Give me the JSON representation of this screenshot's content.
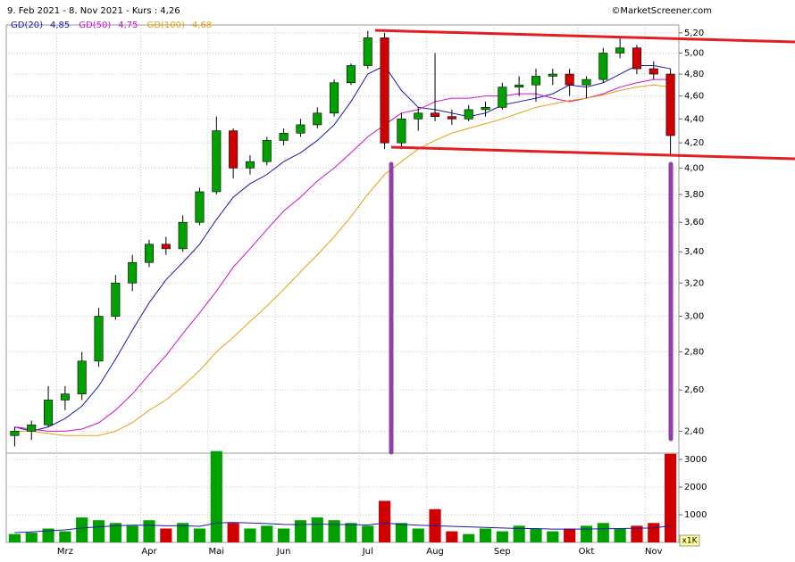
{
  "chart_data": {
    "type": "candlestick",
    "title": "9. Feb 2021 - 8. Nov 2021 - Kurs : 4,26",
    "source": "©MarketScreener.com",
    "categories": [
      null,
      null,
      null,
      "Mrz",
      null,
      null,
      null,
      null,
      "Apr",
      null,
      null,
      null,
      "Mai",
      null,
      null,
      null,
      "Jun",
      null,
      null,
      null,
      null,
      "Jul",
      null,
      null,
      null,
      "Aug",
      null,
      null,
      null,
      "Sep",
      null,
      null,
      null,
      null,
      "Okt",
      null,
      null,
      null,
      "Nov",
      null
    ],
    "open": [
      2.38,
      2.4,
      2.43,
      2.55,
      2.58,
      2.75,
      3.0,
      3.2,
      3.33,
      3.45,
      3.42,
      3.6,
      3.82,
      4.3,
      4.0,
      4.05,
      4.22,
      4.28,
      4.35,
      4.45,
      4.72,
      4.88,
      5.15,
      4.2,
      4.4,
      4.45,
      4.42,
      4.4,
      4.48,
      4.5,
      4.68,
      4.7,
      4.78,
      4.8,
      4.7,
      4.75,
      5.0,
      5.05,
      4.85,
      4.8
    ],
    "high": [
      2.42,
      2.45,
      2.62,
      2.62,
      2.8,
      3.05,
      3.25,
      3.38,
      3.48,
      3.5,
      3.65,
      3.85,
      4.42,
      4.32,
      4.1,
      4.25,
      4.32,
      4.4,
      4.5,
      4.75,
      4.9,
      5.22,
      5.2,
      4.45,
      4.5,
      5.0,
      4.48,
      4.52,
      4.55,
      4.72,
      4.78,
      4.85,
      4.85,
      4.85,
      4.78,
      5.05,
      5.15,
      5.08,
      4.92,
      4.85
    ],
    "low": [
      2.33,
      2.36,
      2.42,
      2.5,
      2.55,
      2.72,
      2.98,
      3.15,
      3.3,
      3.38,
      3.4,
      3.58,
      3.8,
      3.92,
      3.95,
      4.02,
      4.18,
      4.25,
      4.32,
      4.42,
      4.7,
      4.85,
      4.15,
      4.15,
      4.3,
      4.38,
      4.35,
      4.38,
      4.42,
      4.48,
      4.6,
      4.55,
      4.7,
      4.6,
      4.58,
      4.72,
      4.95,
      4.8,
      4.75,
      4.1
    ],
    "close": [
      2.4,
      2.43,
      2.55,
      2.58,
      2.75,
      3.0,
      3.2,
      3.33,
      3.45,
      3.42,
      3.6,
      3.82,
      4.3,
      4.0,
      4.05,
      4.22,
      4.28,
      4.35,
      4.45,
      4.72,
      4.88,
      5.15,
      4.2,
      4.4,
      4.45,
      4.42,
      4.4,
      4.48,
      4.5,
      4.68,
      4.7,
      4.78,
      4.8,
      4.7,
      4.75,
      5.0,
      5.05,
      4.85,
      4.8,
      4.26
    ],
    "up_color": "#00a000",
    "down_color": "#d00000",
    "series": [
      {
        "name": "GD(20)",
        "last_label": "4,85",
        "color": "#1a1aa8",
        "values": [
          2.42,
          2.4,
          2.42,
          2.46,
          2.52,
          2.62,
          2.76,
          2.92,
          3.08,
          3.22,
          3.33,
          3.45,
          3.62,
          3.78,
          3.88,
          3.95,
          4.05,
          4.12,
          4.22,
          4.35,
          4.55,
          4.8,
          4.88,
          4.65,
          4.5,
          4.48,
          4.45,
          4.42,
          4.45,
          4.52,
          4.55,
          4.58,
          4.62,
          4.7,
          4.68,
          4.72,
          4.8,
          4.88,
          4.88,
          4.85
        ]
      },
      {
        "name": "GD(50)",
        "last_label": "4,75",
        "color": "#d010d0",
        "values": [
          2.42,
          2.41,
          2.4,
          2.4,
          2.41,
          2.44,
          2.5,
          2.58,
          2.68,
          2.78,
          2.9,
          3.02,
          3.15,
          3.3,
          3.42,
          3.55,
          3.68,
          3.78,
          3.9,
          4.0,
          4.12,
          4.25,
          4.35,
          4.45,
          4.48,
          4.55,
          4.58,
          4.58,
          4.6,
          4.6,
          4.62,
          4.62,
          4.58,
          4.55,
          4.58,
          4.62,
          4.68,
          4.72,
          4.75,
          4.75
        ]
      },
      {
        "name": "GD(100)",
        "last_label": "4,68",
        "color": "#e8a010",
        "values": [
          2.4,
          2.4,
          2.39,
          2.38,
          2.38,
          2.38,
          2.4,
          2.44,
          2.5,
          2.55,
          2.62,
          2.7,
          2.8,
          2.88,
          2.97,
          3.06,
          3.16,
          3.27,
          3.38,
          3.5,
          3.64,
          3.8,
          3.95,
          4.05,
          4.15,
          4.22,
          4.28,
          4.32,
          4.36,
          4.4,
          4.45,
          4.5,
          4.53,
          4.56,
          4.58,
          4.61,
          4.65,
          4.68,
          4.7,
          4.68
        ]
      }
    ],
    "log_scale": true,
    "grid": true,
    "ylim": [
      2.3,
      5.28
    ],
    "yticks": [
      {
        "value": 2.4,
        "label": "2,40"
      },
      {
        "value": 2.6,
        "label": "2,60"
      },
      {
        "value": 2.8,
        "label": "2,80"
      },
      {
        "value": 3.0,
        "label": "3,00"
      },
      {
        "value": 3.2,
        "label": "3,20"
      },
      {
        "value": 3.4,
        "label": "3,40"
      },
      {
        "value": 3.6,
        "label": "3,60"
      },
      {
        "value": 3.8,
        "label": "3,80"
      },
      {
        "value": 4.0,
        "label": "4,00"
      },
      {
        "value": 4.2,
        "label": "4,20"
      },
      {
        "value": 4.4,
        "label": "4,40"
      },
      {
        "value": 4.6,
        "label": "4,60"
      },
      {
        "value": 4.8,
        "label": "4,80"
      },
      {
        "value": 5.0,
        "label": "5,00"
      },
      {
        "value": 5.2,
        "label": "5,20"
      }
    ],
    "volume": [
      300,
      350,
      500,
      400,
      900,
      800,
      700,
      600,
      800,
      500,
      700,
      500,
      3300,
      700,
      500,
      600,
      500,
      800,
      900,
      800,
      700,
      600,
      1500,
      700,
      500,
      1200,
      400,
      300,
      500,
      400,
      600,
      500,
      400,
      500,
      600,
      700,
      500,
      600,
      700,
      3200
    ],
    "volume_avg": [
      350,
      380,
      420,
      450,
      520,
      560,
      600,
      620,
      620,
      600,
      600,
      580,
      700,
      720,
      700,
      680,
      650,
      640,
      660,
      650,
      640,
      630,
      700,
      650,
      620,
      600,
      580,
      560,
      540,
      520,
      500,
      500,
      480,
      480,
      480,
      490,
      500,
      510,
      520,
      600
    ],
    "volume_avg_color": "#1a1aa8",
    "volume_ylim": [
      0,
      3225
    ],
    "volume_ticks": [
      1000,
      2000,
      3000
    ],
    "volume_unit": "x1K"
  }
}
